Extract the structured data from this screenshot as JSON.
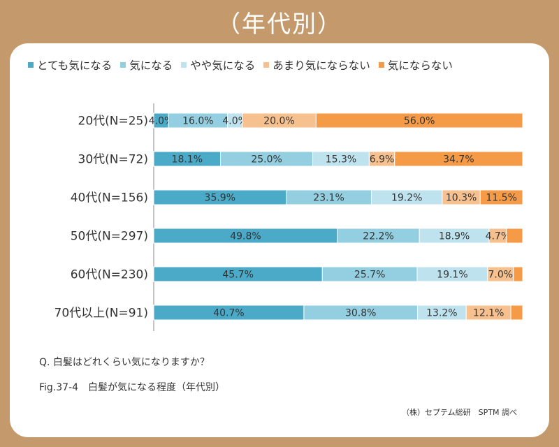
{
  "banner": {
    "title": "（年代別）"
  },
  "question": "Q. 白髪はどれくらい気になりますか？",
  "figure_caption": "Fig.37-4　白髪が気になる程度（年代別）",
  "credit": "（株）セプテム総研　SPTM 調べ",
  "chart_data": {
    "type": "bar",
    "orientation": "horizontal",
    "stacked": true,
    "normalized_percent": true,
    "legend_position": "top",
    "grid": false,
    "xlim": [
      0,
      100
    ],
    "categories": [
      "20代(N=25)",
      "30代(N=72)",
      "40代(N=156)",
      "50代(N=297)",
      "60代(N=230)",
      "70代以上(N=91)"
    ],
    "series": [
      {
        "name": "とても気になる",
        "color": "#4baac8",
        "values": [
          4.0,
          18.1,
          35.9,
          49.8,
          45.7,
          40.7
        ]
      },
      {
        "name": "気になる",
        "color": "#93cfe0",
        "values": [
          16.0,
          25.0,
          23.1,
          22.2,
          25.7,
          30.8
        ]
      },
      {
        "name": "やや気になる",
        "color": "#bfe3ee",
        "values": [
          4.0,
          15.3,
          19.2,
          18.9,
          19.1,
          13.2
        ]
      },
      {
        "name": "あまり気にならない",
        "color": "#f6c08f",
        "values": [
          20.0,
          6.9,
          10.3,
          4.7,
          7.0,
          12.1
        ]
      },
      {
        "name": "気にならない",
        "color": "#f59a47",
        "values": [
          56.0,
          34.7,
          11.5,
          4.4,
          2.5,
          3.2
        ]
      }
    ],
    "data_labels": [
      [
        "4.0%",
        "16.0%",
        "4.0%",
        "20.0%",
        "56.0%"
      ],
      [
        "18.1%",
        "25.0%",
        "15.3%",
        "6.9%",
        "34.7%"
      ],
      [
        "35.9%",
        "23.1%",
        "19.2%",
        "10.3%",
        "11.5%"
      ],
      [
        "49.8%",
        "22.2%",
        "18.9%",
        "4.7%",
        ""
      ],
      [
        "45.7%",
        "25.7%",
        "19.1%",
        "7.0%",
        ""
      ],
      [
        "40.7%",
        "30.8%",
        "13.2%",
        "12.1%",
        ""
      ]
    ]
  }
}
